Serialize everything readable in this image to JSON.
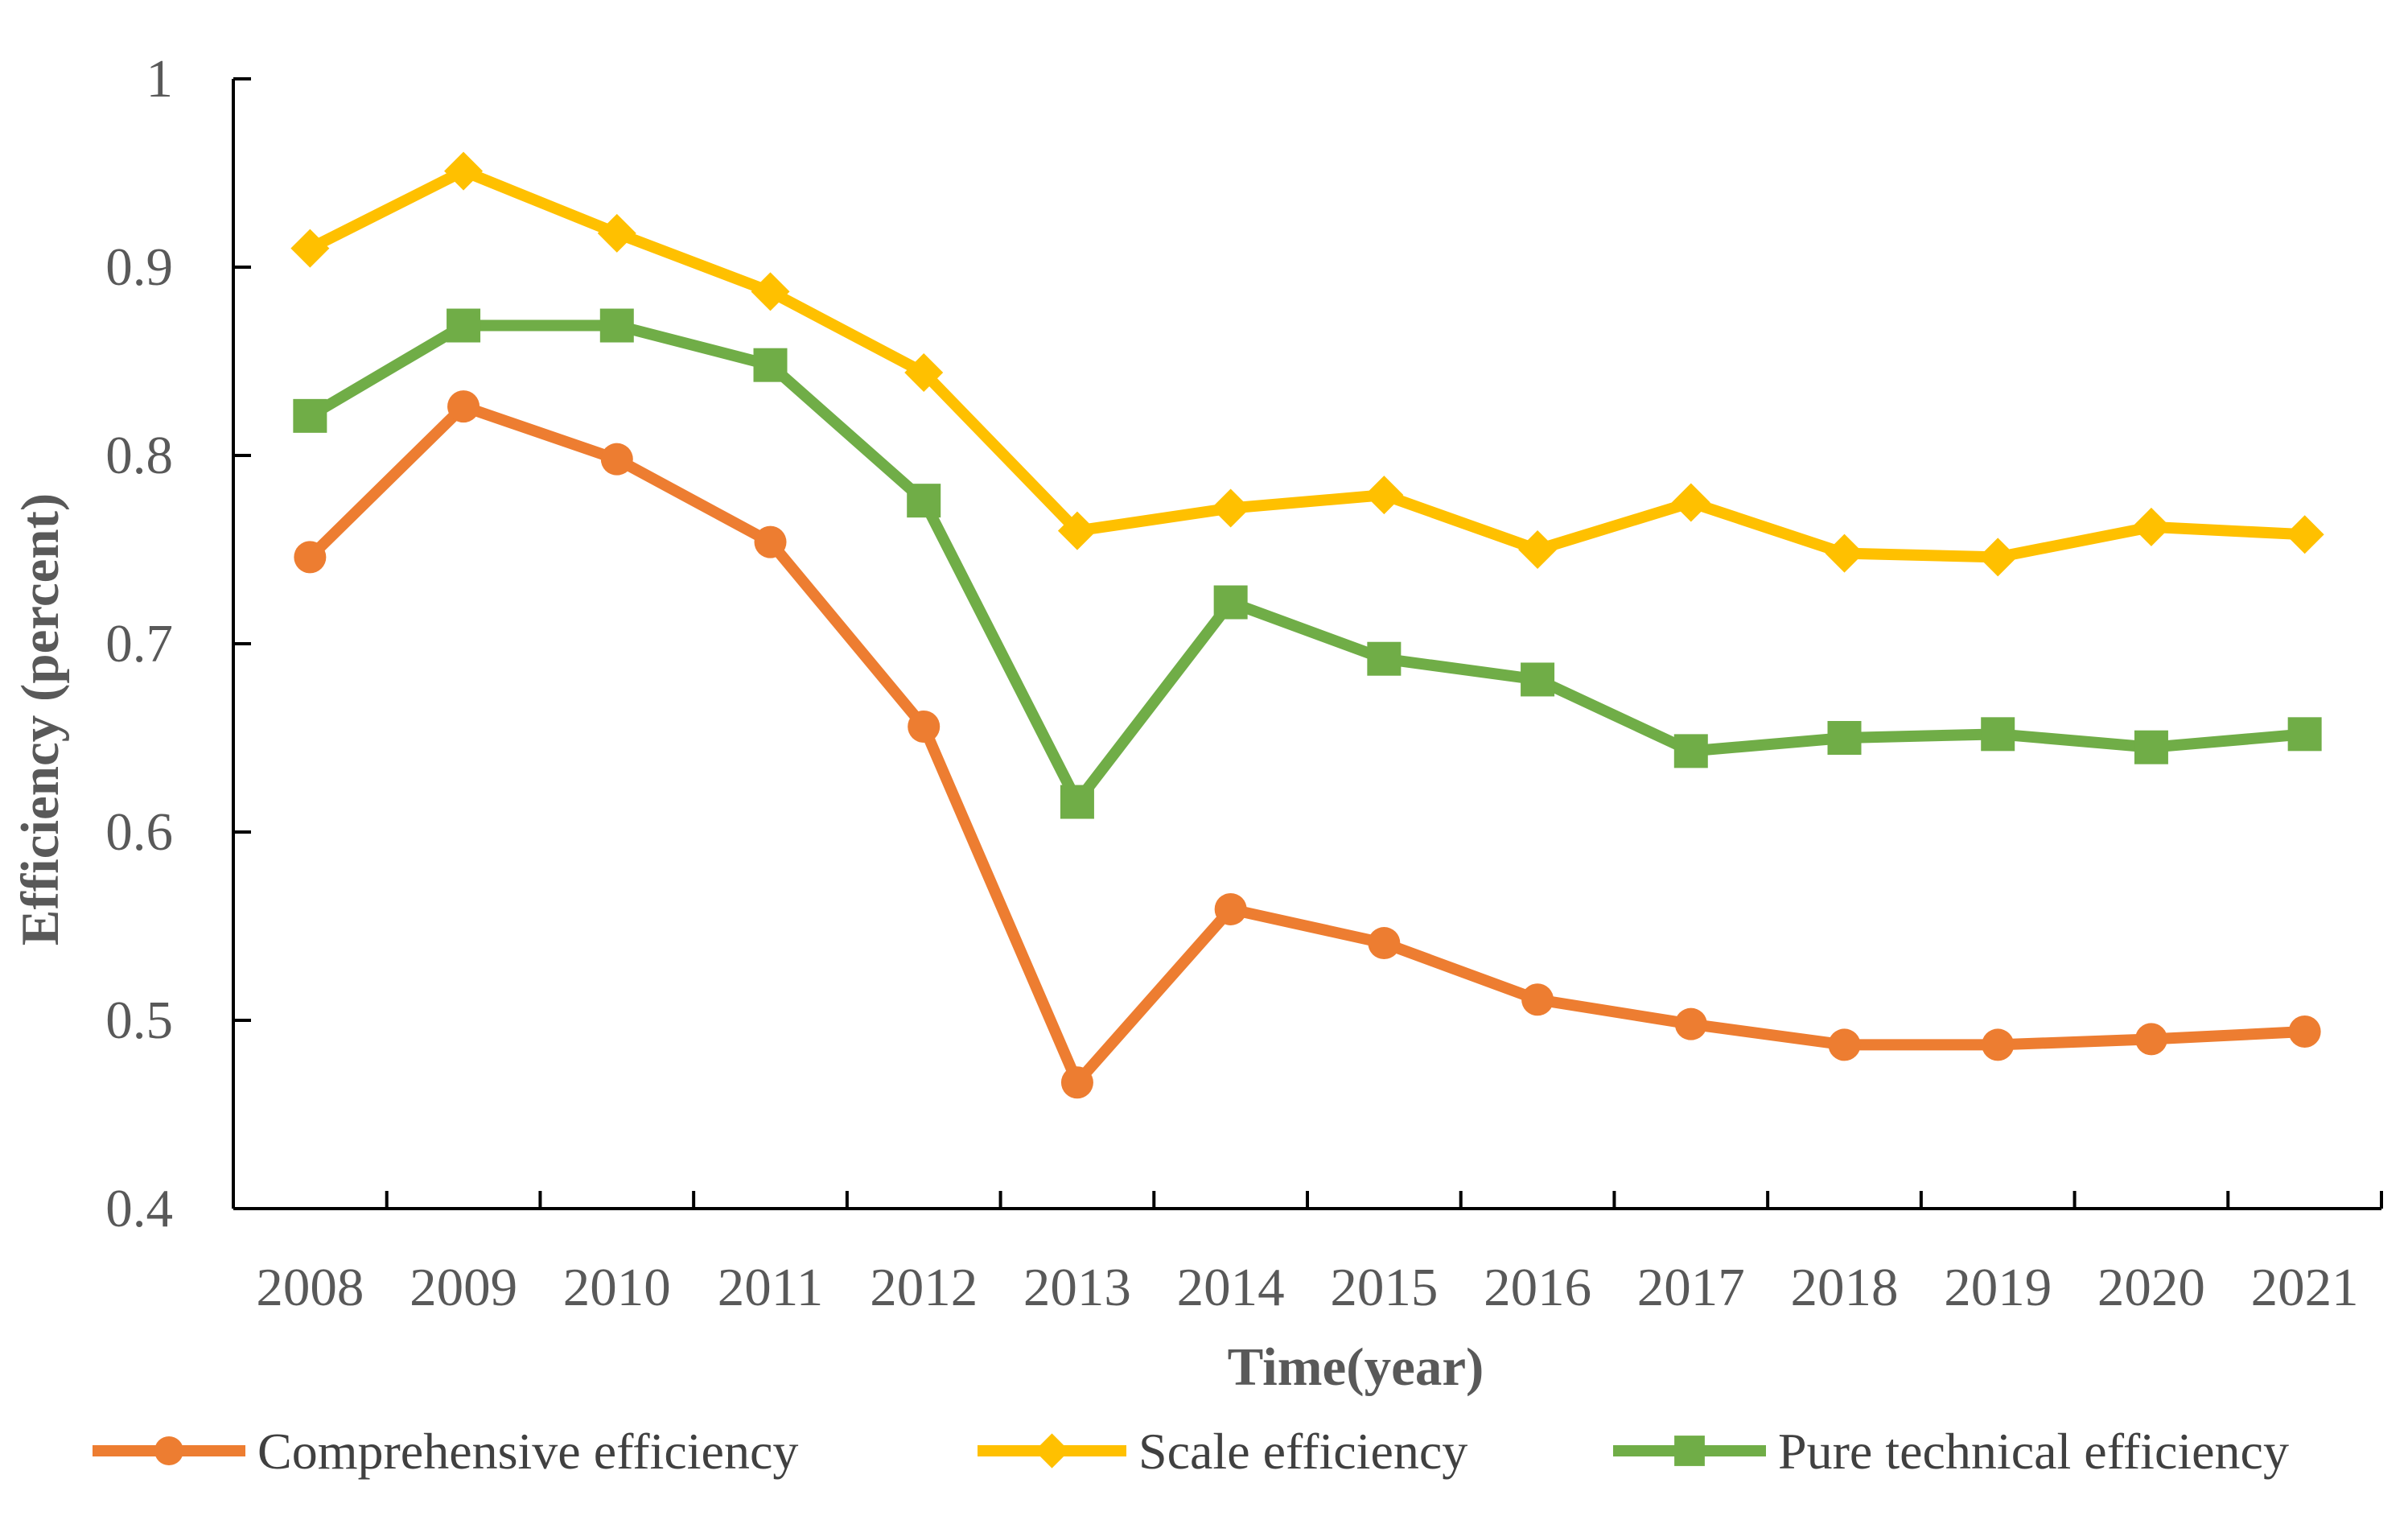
{
  "chart_data": {
    "type": "line",
    "title": "",
    "xlabel": "Time(year)",
    "ylabel": "Efficiency (percent)",
    "ylim": [
      0.4,
      1.0
    ],
    "yticks": [
      "0.4",
      "0.5",
      "0.6",
      "0.7",
      "0.8",
      "0.9",
      "1"
    ],
    "grid": false,
    "legend_position": "bottom",
    "categories": [
      "2008",
      "2009",
      "2010",
      "2011",
      "2012",
      "2013",
      "2014",
      "2015",
      "2016",
      "2017",
      "2018",
      "2019",
      "2020",
      "2021"
    ],
    "series": [
      {
        "name": "Comprehensive efficiency",
        "color": "#ED7D31",
        "marker": "circle",
        "values": [
          0.746,
          0.826,
          0.798,
          0.754,
          0.656,
          0.467,
          0.559,
          0.541,
          0.511,
          0.498,
          0.487,
          0.487,
          0.49,
          0.494
        ]
      },
      {
        "name": "Scale efficiency",
        "color": "#FFC000",
        "marker": "diamond",
        "values": [
          0.91,
          0.951,
          0.918,
          0.887,
          0.844,
          0.76,
          0.772,
          0.779,
          0.75,
          0.775,
          0.748,
          0.746,
          0.762,
          0.758
        ]
      },
      {
        "name": "Pure technical efficiency",
        "color": "#70AD47",
        "marker": "square",
        "values": [
          0.821,
          0.869,
          0.869,
          0.848,
          0.776,
          0.616,
          0.722,
          0.692,
          0.681,
          0.643,
          0.65,
          0.652,
          0.645,
          0.652
        ]
      }
    ]
  }
}
